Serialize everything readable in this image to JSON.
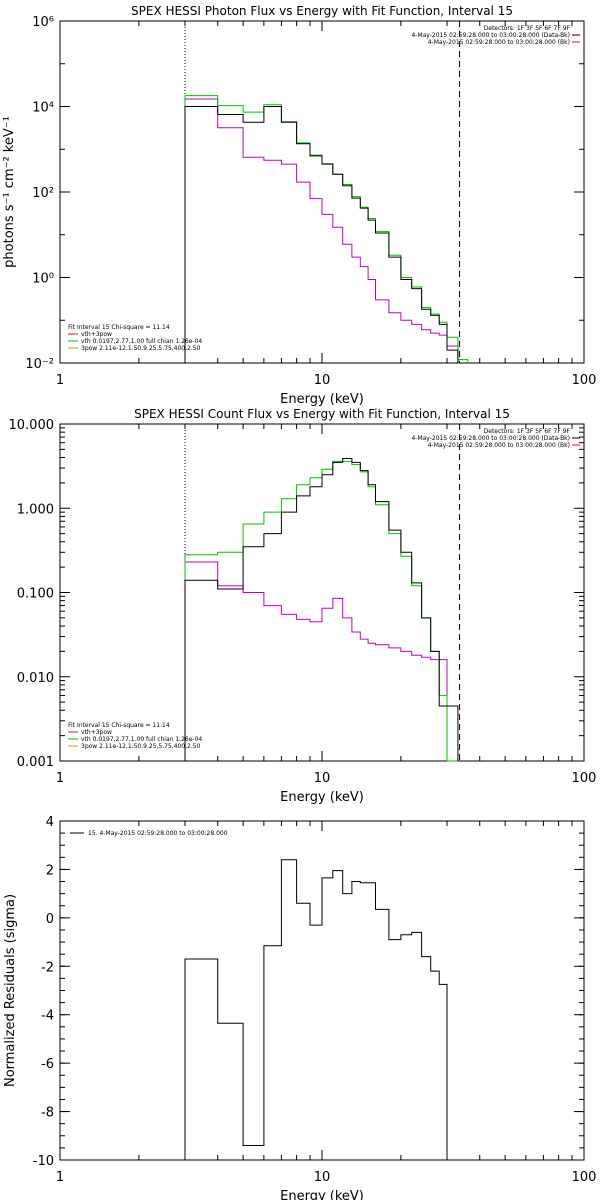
{
  "colors": {
    "data": "#000000",
    "model": "#00c000",
    "component": "#c000c0",
    "mark1": "#d02020",
    "mark2": "#c0a000"
  },
  "chart_data": [
    {
      "type": "line",
      "title": "SPEX HESSI Photon Flux vs Energy with Fit Function, Interval 15",
      "xlabel": "Energy (keV)",
      "ylabel": "photons s⁻¹ cm⁻² keV⁻¹",
      "xscale": "log",
      "yscale": "log",
      "xlim": [
        1,
        100
      ],
      "ylim": [
        0.01,
        1000000
      ],
      "xticks": [
        "1",
        "10",
        "100"
      ],
      "yticks": [
        "10⁶",
        "10⁴",
        "10²",
        "10⁰",
        "10⁻²"
      ],
      "vlines": [
        {
          "x": 3,
          "style": "dotted"
        },
        {
          "x": 33.5,
          "style": "dashed"
        }
      ],
      "legend_top": [
        "Detectors: 1F 3F 5F 6F 7F 9F",
        "4-May-2015 02:59:28.000 to 03:00:28.000 (Data-Bk)",
        "4-May-2015 02:59:28.000 to 03:00:28.000 (Bk)"
      ],
      "legend_bottom": [
        "Fit Interval 15   Chi-square = 11.14",
        "vth+3pow",
        "vth 0.0197,2.77,1.00  full chian 1.26e-04",
        "3pow 2.11e-12,1.50,9.25,5.75,400,2.50"
      ],
      "edges": [
        3,
        4,
        5,
        6,
        7,
        8,
        9,
        10,
        11,
        12,
        13,
        14,
        15,
        16,
        18,
        20,
        22,
        24,
        26,
        28,
        30,
        33,
        36
      ],
      "series": [
        {
          "name": "Data-Bk",
          "values": [
            10000,
            6500,
            4300,
            10000,
            4300,
            1350,
            700,
            450,
            260,
            140,
            72,
            42,
            22,
            11,
            3,
            0.9,
            0.55,
            0.18,
            0.13,
            0.08,
            0.02,
            null
          ]
        },
        {
          "name": "vth+3pow",
          "values": [
            18000,
            10500,
            7400,
            11000,
            4400,
            1400,
            730,
            460,
            260,
            150,
            78,
            44,
            24,
            12,
            3.3,
            1.0,
            0.6,
            0.2,
            0.14,
            0.09,
            0.04,
            0.012
          ]
        },
        {
          "name": "Bk",
          "values": [
            15000,
            3200,
            650,
            550,
            450,
            170,
            70,
            30,
            15,
            6,
            3,
            1.8,
            0.9,
            0.3,
            0.15,
            0.1,
            0.08,
            0.06,
            0.05,
            0.045,
            0.025,
            null
          ]
        }
      ]
    },
    {
      "type": "line",
      "title": "SPEX HESSI Count Flux vs Energy with Fit Function, Interval 15",
      "xlabel": "Energy (keV)",
      "ylabel": "",
      "xscale": "log",
      "yscale": "log",
      "xlim": [
        1,
        100
      ],
      "ylim": [
        0.001,
        10
      ],
      "xticks": [
        "1",
        "10",
        "100"
      ],
      "yticks": [
        "10.000",
        "1.000",
        "0.100",
        "0.010",
        "0.001"
      ],
      "vlines": [
        {
          "x": 3,
          "style": "dotted"
        },
        {
          "x": 33.5,
          "style": "dashed"
        }
      ],
      "legend_top": [
        "Detectors: 1F 3F 5F 6F 7F 9F",
        "4-May-2015 02:59:28.000 to 03:00:28.000 (Data-Bk)",
        "4-May-2015 02:59:28.000 to 03:00:28.000 (Bk)"
      ],
      "legend_bottom": [
        "Fit Interval 15   Chi-square = 11.14",
        "vth+3pow",
        "vth 0.0197,2.77,1.00  full chian 1.26e-04",
        "3pow 2.11e-12,1.50,9.25,5.75,400,2.50"
      ],
      "edges": [
        3,
        4,
        5,
        6,
        7,
        8,
        9,
        10,
        11,
        12,
        13,
        14,
        15,
        16,
        18,
        20,
        22,
        24,
        26,
        28,
        30,
        33,
        36
      ],
      "series": [
        {
          "name": "Data-Bk",
          "values": [
            0.14,
            0.11,
            0.35,
            0.5,
            0.9,
            1.4,
            1.8,
            2.5,
            3.5,
            3.9,
            3.5,
            2.8,
            1.9,
            1.2,
            0.55,
            0.3,
            0.13,
            0.05,
            0.02,
            0.0045,
            0.0045,
            null
          ]
        },
        {
          "name": "vth+3pow",
          "values": [
            0.28,
            0.3,
            0.65,
            0.9,
            1.3,
            1.9,
            2.3,
            2.9,
            3.6,
            3.6,
            3.3,
            2.7,
            1.8,
            1.1,
            0.5,
            0.27,
            0.12,
            0.05,
            0.02,
            0.006,
            0.001,
            null
          ]
        },
        {
          "name": "Bk",
          "values": [
            0.23,
            0.12,
            0.1,
            0.07,
            0.055,
            0.048,
            0.045,
            0.065,
            0.085,
            0.05,
            0.034,
            0.028,
            0.025,
            0.024,
            0.022,
            0.02,
            0.018,
            0.017,
            0.016,
            0.016,
            0.001,
            null
          ]
        }
      ]
    },
    {
      "type": "line",
      "title": "",
      "xlabel": "Energy (keV)",
      "ylabel": "Normalized Residuals (sigma)",
      "xscale": "log",
      "yscale": "linear",
      "xlim": [
        1,
        100
      ],
      "ylim": [
        -10,
        4
      ],
      "xticks": [
        "1",
        "10",
        "100"
      ],
      "yticks": [
        "4",
        "2",
        "0",
        "-2",
        "-4",
        "-6",
        "-8",
        "-10"
      ],
      "vlines": [],
      "legend_top": [
        "15.  4-May-2015 02:59:28.000 to 03:00:28.000"
      ],
      "legend_bottom": [],
      "edges": [
        3,
        4,
        5,
        6,
        7,
        8,
        9,
        10,
        11,
        12,
        13,
        14,
        15,
        16,
        18,
        20,
        22,
        24,
        26,
        28,
        30,
        33
      ],
      "series": [
        {
          "name": "15.",
          "values": [
            -1.7,
            -4.35,
            -9.4,
            -1.15,
            2.4,
            0.6,
            -0.3,
            1.65,
            1.95,
            1.0,
            1.5,
            1.45,
            1.45,
            0.35,
            -0.9,
            -0.7,
            -0.6,
            -1.6,
            -2.2,
            -2.75,
            -10
          ]
        }
      ]
    }
  ]
}
